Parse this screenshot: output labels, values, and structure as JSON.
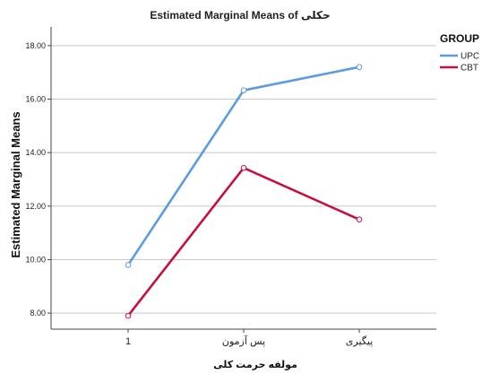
{
  "chart_data": {
    "type": "line",
    "title": "Estimated Marginal Means of حکلی",
    "xlabel": "مولفه حرمت کلی",
    "ylabel": "Estimated Marginal Means",
    "categories": [
      "1",
      "پس آزمون",
      "پیگیری"
    ],
    "series": [
      {
        "name": "UPC",
        "color": "#5b9bde",
        "values": [
          9.8,
          16.33,
          17.2
        ]
      },
      {
        "name": "CBT",
        "color": "#c8103e",
        "values": [
          7.9,
          13.43,
          11.5
        ]
      }
    ],
    "ylim": [
      7.4,
      18.7
    ],
    "yticks": [
      "8.00",
      "10.00",
      "12.00",
      "14.00",
      "16.00",
      "18.00"
    ],
    "ytick_values": [
      8,
      10,
      12,
      14,
      16,
      18
    ],
    "grid": true,
    "legend": {
      "title": "GROUP",
      "position": "right"
    }
  }
}
